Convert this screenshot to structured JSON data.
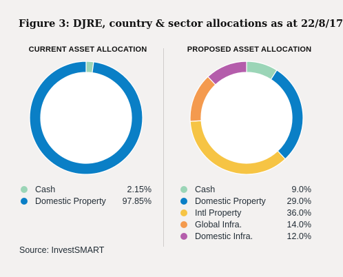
{
  "title": "Figure 3: DJRE, country & sector allocations as at 22/8/17",
  "source": "Source: InvestSMART",
  "chart_data": [
    {
      "type": "pie",
      "title": "CURRENT ASSET ALLOCATION",
      "series": [
        {
          "name": "Cash",
          "value": 2.15,
          "label": "2.15%",
          "color": "#9bd5b7"
        },
        {
          "name": "Domestic Property",
          "value": 97.85,
          "label": "97.85%",
          "color": "#0a7fc6"
        }
      ]
    },
    {
      "type": "pie",
      "title": "PROPOSED ASSET ALLOCATION",
      "series": [
        {
          "name": "Cash",
          "value": 9.0,
          "label": "9.0%",
          "color": "#9bd5b7"
        },
        {
          "name": "Domestic Property",
          "value": 29.0,
          "label": "29.0%",
          "color": "#0a7fc6"
        },
        {
          "name": "Intl Property",
          "value": 36.0,
          "label": "36.0%",
          "color": "#f6c444"
        },
        {
          "name": "Global Infra.",
          "value": 14.0,
          "label": "14.0%",
          "color": "#f49a4e"
        },
        {
          "name": "Domestic Infra.",
          "value": 12.0,
          "label": "12.0%",
          "color": "#b45dab"
        }
      ]
    }
  ]
}
